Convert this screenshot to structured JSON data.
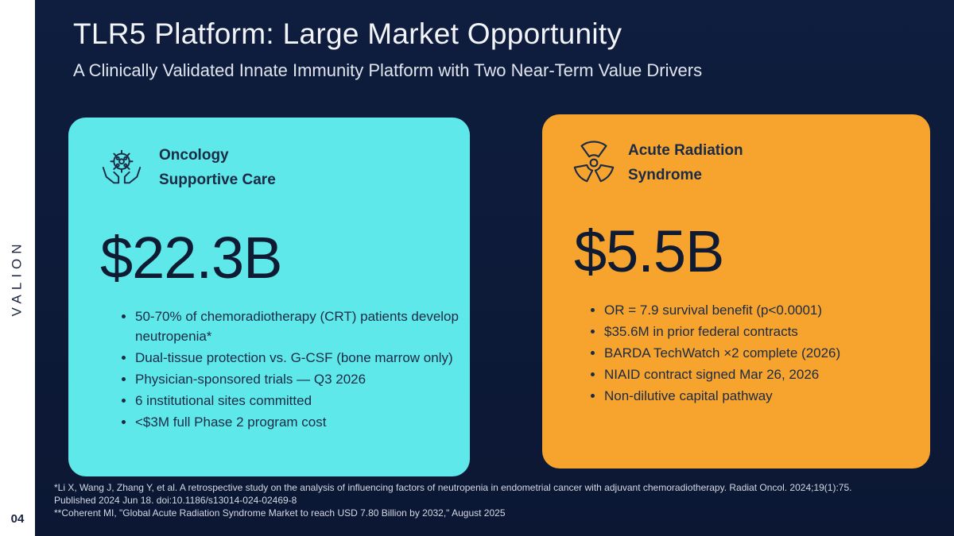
{
  "slide": {
    "title": "TLR5 Platform: Large Market Opportunity",
    "subtitle": "A Clinically Validated Innate Immunity Platform with Two Near-Term Value Drivers",
    "brand": "VALION",
    "page_number": "04"
  },
  "cards": {
    "oncology": {
      "icon": "hands-holding-cell-icon",
      "title_line1": "Oncology",
      "title_line2": "Supportive Care",
      "value": "$22.3B",
      "bullets": [
        "50-70% of chemoradiotherapy (CRT) patients develop neutropenia*",
        "Dual-tissue protection vs. G-CSF (bone marrow only)",
        "Physician-sponsored trials — Q3 2026",
        "6 institutional sites committed",
        "<$3M full Phase 2 program cost"
      ],
      "color": "#5ee8ea"
    },
    "ars": {
      "icon": "radiation-icon",
      "title_line1": "Acute Radiation",
      "title_line2": "Syndrome",
      "value": "$5.5B",
      "bullets": [
        "OR = 7.9 survival benefit (p<0.0001)",
        "$35.6M in prior federal contracts",
        "BARDA TechWatch ×2 complete (2026)",
        "NIAID contract signed Mar 26, 2026",
        "Non-dilutive capital pathway"
      ],
      "color": "#f6a42d"
    }
  },
  "footnotes": {
    "line1": "*Li X, Wang J, Zhang Y, et al. A retrospective study on the analysis of influencing factors of neutropenia in endometrial cancer with adjuvant chemoradiotherapy. Radiat Oncol. 2024;19(1):75.",
    "line2": "Published 2024 Jun 18. doi:10.1186/s13014-024-02469-8",
    "line3": "**Coherent MI, \"Global Acute Radiation Syndrome Market to reach USD 7.80 Billion by 2032,\" August 2025"
  }
}
